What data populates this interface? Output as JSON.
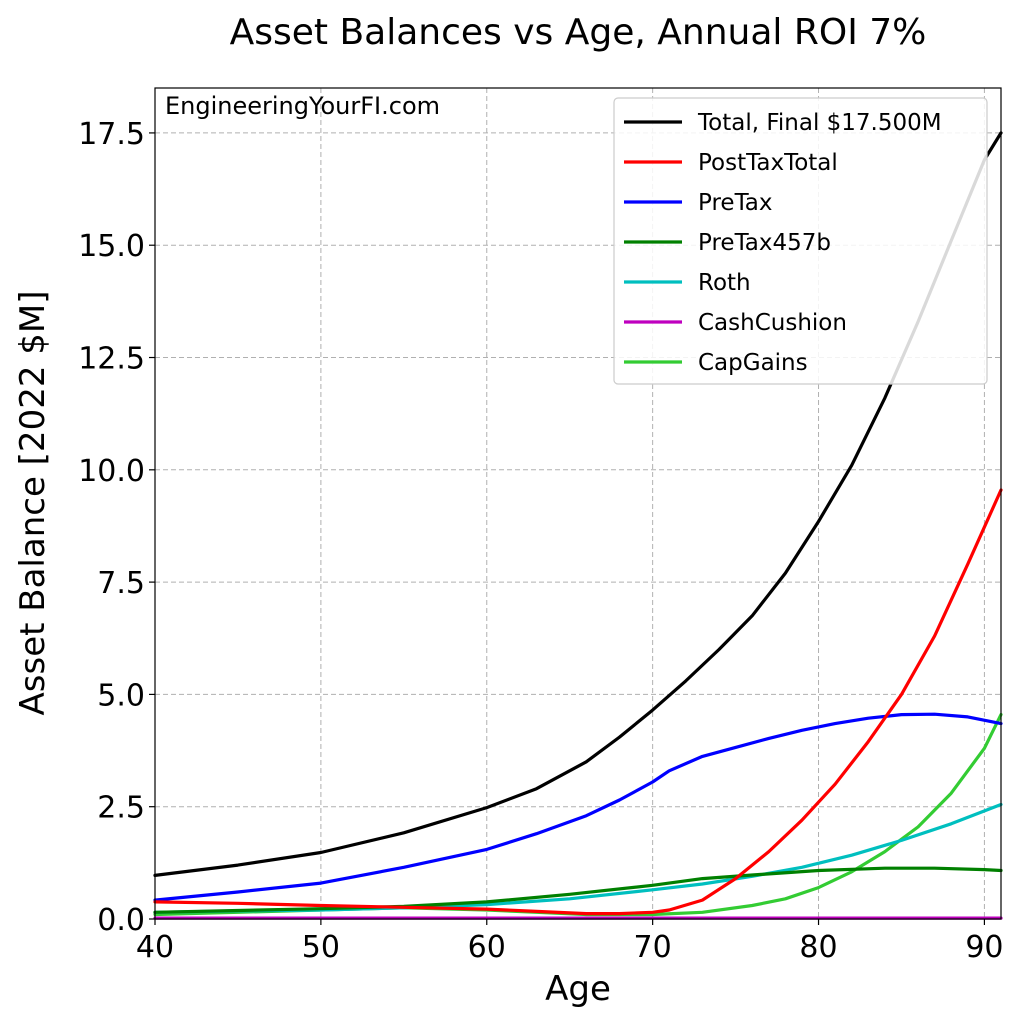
{
  "chart_data": {
    "type": "line",
    "title": "Asset Balances vs Age, Annual ROI 7%",
    "xlabel": "Age",
    "ylabel": "Asset Balance [2022 $M]",
    "watermark": "EngineeringYourFI.com",
    "xlim": [
      40,
      91
    ],
    "ylim": [
      0,
      18.5
    ],
    "xticks": [
      40,
      50,
      60,
      70,
      80,
      90
    ],
    "yticks": [
      0.0,
      2.5,
      5.0,
      7.5,
      10.0,
      12.5,
      15.0,
      17.5
    ],
    "grid": true,
    "legend_position": "top-right",
    "series": [
      {
        "name": "Total, Final $17.500M",
        "color": "#000000",
        "x": [
          40,
          45,
          50,
          55,
          60,
          63,
          66,
          68,
          70,
          72,
          74,
          76,
          78,
          80,
          82,
          84,
          86,
          88,
          90,
          91
        ],
        "y": [
          0.97,
          1.2,
          1.48,
          1.92,
          2.48,
          2.9,
          3.5,
          4.05,
          4.65,
          5.3,
          6.0,
          6.75,
          7.7,
          8.85,
          10.1,
          11.6,
          13.3,
          15.1,
          16.9,
          17.5
        ]
      },
      {
        "name": "PostTaxTotal",
        "color": "#ff0000",
        "x": [
          40,
          45,
          50,
          55,
          60,
          63,
          66,
          68,
          70,
          71,
          73,
          75,
          77,
          79,
          81,
          83,
          85,
          87,
          89,
          91
        ],
        "y": [
          0.38,
          0.35,
          0.3,
          0.26,
          0.22,
          0.17,
          0.12,
          0.12,
          0.15,
          0.2,
          0.42,
          0.9,
          1.5,
          2.2,
          3.0,
          3.95,
          5.0,
          6.3,
          7.9,
          9.55
        ]
      },
      {
        "name": "PreTax",
        "color": "#0000ff",
        "x": [
          40,
          45,
          50,
          55,
          60,
          63,
          66,
          68,
          70,
          71,
          73,
          75,
          77,
          79,
          81,
          83,
          85,
          87,
          89,
          91
        ],
        "y": [
          0.42,
          0.6,
          0.8,
          1.15,
          1.55,
          1.9,
          2.3,
          2.65,
          3.05,
          3.3,
          3.62,
          3.82,
          4.02,
          4.2,
          4.35,
          4.47,
          4.55,
          4.56,
          4.5,
          4.35
        ]
      },
      {
        "name": "PreTax457b",
        "color": "#008000",
        "x": [
          40,
          45,
          50,
          55,
          60,
          65,
          70,
          73,
          76,
          80,
          84,
          87,
          90,
          91
        ],
        "y": [
          0.15,
          0.19,
          0.23,
          0.28,
          0.38,
          0.55,
          0.75,
          0.9,
          0.98,
          1.08,
          1.13,
          1.13,
          1.1,
          1.08
        ]
      },
      {
        "name": "Roth",
        "color": "#00bfbf",
        "x": [
          40,
          45,
          50,
          55,
          60,
          65,
          70,
          73,
          76,
          79,
          82,
          85,
          88,
          91
        ],
        "y": [
          0.15,
          0.18,
          0.2,
          0.25,
          0.32,
          0.45,
          0.65,
          0.78,
          0.95,
          1.15,
          1.42,
          1.75,
          2.12,
          2.55
        ]
      },
      {
        "name": "CashCushion",
        "color": "#bf00bf",
        "x": [
          40,
          91
        ],
        "y": [
          0.02,
          0.02
        ]
      },
      {
        "name": "CapGains",
        "color": "#33cc33",
        "x": [
          40,
          45,
          50,
          55,
          60,
          63,
          66,
          70,
          73,
          76,
          78,
          80,
          82,
          84,
          86,
          88,
          90,
          91
        ],
        "y": [
          0.1,
          0.15,
          0.2,
          0.25,
          0.2,
          0.15,
          0.1,
          0.1,
          0.15,
          0.3,
          0.45,
          0.7,
          1.05,
          1.5,
          2.05,
          2.8,
          3.8,
          4.55
        ]
      }
    ]
  }
}
